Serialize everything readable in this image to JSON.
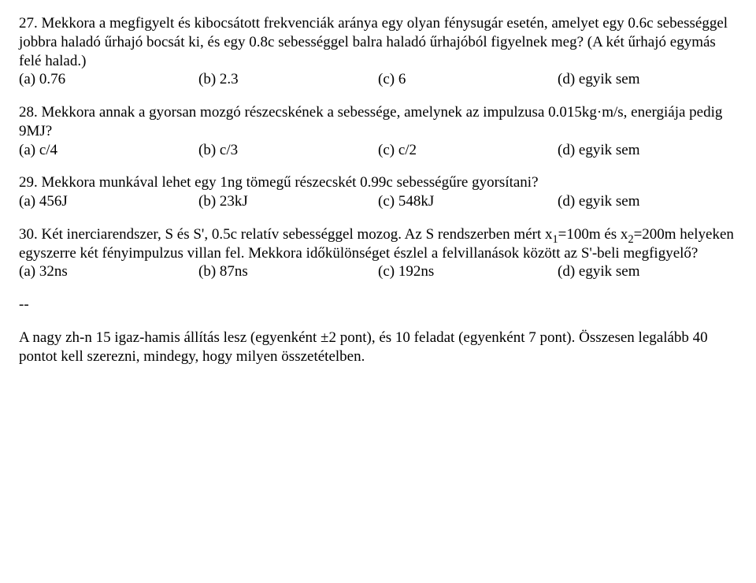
{
  "q27": {
    "text": "27. Mekkora a megfigyelt és kibocsátott frekvenciák aránya egy olyan fénysugár esetén, amelyet egy 0.6c sebességgel jobbra haladó űrhajó bocsát ki, és egy 0.8c sebességgel balra haladó űrhajóból figyelnek meg? (A két űrhajó egymás felé halad.)",
    "a": "(a) 0.76",
    "b": "(b) 2.3",
    "c": "(c) 6",
    "d": "(d) egyik sem"
  },
  "q28": {
    "text": "28. Mekkora annak a gyorsan mozgó részecskének a sebessége, amelynek az impulzusa 0.015kg·m/s, energiája pedig 9MJ?",
    "a": "(a) c/4",
    "b": "(b) c/3",
    "c": "(c) c/2",
    "d": "(d) egyik sem"
  },
  "q29": {
    "text": "29. Mekkora munkával lehet egy 1ng tömegű részecskét 0.99c sebességűre gyorsítani?",
    "a": "(a) 456J",
    "b": "(b) 23kJ",
    "c": "(c) 548kJ",
    "d": "(d) egyik sem"
  },
  "q30": {
    "pre": "30. Két inerciarendszer, S és S', 0.5c relatív sebességgel mozog. Az S rendszerben mért x",
    "s1n": "1",
    "mid1": "=100m és x",
    "s2n": "2",
    "post": "=200m helyeken egyszerre két fényimpulzus villan fel. Mekkora időkülönséget észlel a felvillanások között az S'-beli megfigyelő?",
    "a": "(a) 32ns",
    "b": "(b) 87ns",
    "c": "(c) 192ns",
    "d": "(d) egyik sem"
  },
  "dash": "--",
  "footer": "A nagy zh-n 15 igaz-hamis állítás lesz (egyenként ±2 pont), és 10 feladat (egyenként 7 pont). Összesen legalább 40 pontot kell szerezni, mindegy, hogy milyen összetételben."
}
